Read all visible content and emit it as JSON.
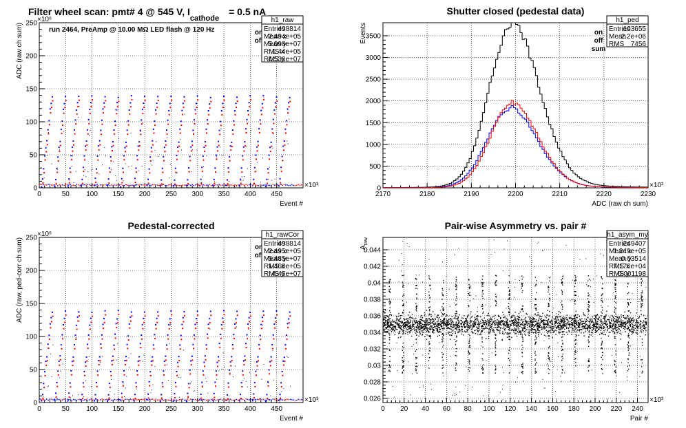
{
  "colors": {
    "on": "#0000ff",
    "off": "#ff0000",
    "sum": "#000000"
  },
  "chart_data": [
    {
      "id": "h1_raw",
      "type": "scatter",
      "title": "Filter wheel scan: pmt#   4 @   545 V, I",
      "title_sub": "cathode",
      "title_tail": "= 0.5 nA",
      "annotation": "run 2464, PreAmp @ 10.00 MΩ LED flash @  120 Hz",
      "xlabel": "Event #",
      "ylabel": "ADC (raw ch sum)",
      "x_exponent": "×10³",
      "y_exponent": "×10⁶",
      "xlim": [
        0,
        500
      ],
      "ylim": [
        0,
        250
      ],
      "xticks": [
        "0",
        "50",
        "100",
        "150",
        "200",
        "250",
        "300",
        "350",
        "400",
        "450"
      ],
      "yticks": [
        "0",
        "50",
        "100",
        "150",
        "200",
        "250"
      ],
      "legend": [
        {
          "name": "on",
          "color": "#0000ff"
        },
        {
          "name": "off",
          "color": "#ff0000"
        }
      ],
      "stats": {
        "name": "h1_raw",
        "rows": [
          {
            "label": "Entries",
            "value": "498814"
          },
          {
            "label": "Mean x",
            "value": "2.494e+05"
          },
          {
            "label": "Mean y",
            "value": "5.098e+07"
          },
          {
            "label": "RMS x",
            "value": "1.44e+05"
          },
          {
            "label": "RMS y",
            "value": "4.536e+07"
          }
        ]
      },
      "step_levels": [
        3,
        13,
        30,
        48,
        62,
        70,
        88,
        102,
        118,
        128,
        138
      ],
      "step_period": 25
    },
    {
      "id": "h1_ped",
      "type": "histogram",
      "title": "Shutter closed (pedestal data)",
      "xlabel": "ADC (raw ch sum)",
      "ylabel": "Events",
      "x_exponent": "×10³",
      "xlim": [
        2170,
        2230
      ],
      "ylim": [
        0,
        3800
      ],
      "xticks": [
        "2170",
        "2180",
        "2190",
        "2200",
        "2210",
        "2220",
        "2230"
      ],
      "yticks": [
        "0",
        "500",
        "1000",
        "1500",
        "2000",
        "2500",
        "3000",
        "3500"
      ],
      "legend": [
        {
          "name": "on",
          "color": "#0000ff"
        },
        {
          "name": "off",
          "color": "#ff0000"
        },
        {
          "name": "sum",
          "color": "#000000"
        }
      ],
      "stats": {
        "name": "h1_ped",
        "rows": [
          {
            "label": "Entries",
            "value": "103655"
          },
          {
            "label": "Mean",
            "value": "2.2e+06"
          },
          {
            "label": "RMS",
            "value": "7456"
          }
        ]
      },
      "series": [
        {
          "name": "sum",
          "peak": 3650,
          "center": 2199,
          "sigma_left": 5.0,
          "sigma_right": 6.3,
          "tail": 0.06
        },
        {
          "name": "on",
          "peak": 1780,
          "center": 2198.5,
          "sigma_left": 5.0,
          "sigma_right": 6.3,
          "tail": 0.05
        },
        {
          "name": "off",
          "peak": 1880,
          "center": 2199,
          "sigma_left": 4.8,
          "sigma_right": 6.0,
          "tail": 0.05
        }
      ]
    },
    {
      "id": "h1_rawCor",
      "type": "scatter",
      "title": "Pedestal-corrected",
      "xlabel": "Event #",
      "ylabel": "ADC (raw, ped-corr ch sum)",
      "x_exponent": "×10³",
      "y_exponent": "×10⁶",
      "xlim": [
        0,
        500
      ],
      "ylim": [
        0,
        250
      ],
      "xticks": [
        "0",
        "50",
        "100",
        "150",
        "200",
        "250",
        "300",
        "350",
        "400",
        "450"
      ],
      "yticks": [
        "0",
        "50",
        "100",
        "150",
        "200",
        "250"
      ],
      "legend": [
        {
          "name": "on",
          "color": "#0000ff"
        },
        {
          "name": "off",
          "color": "#ff0000"
        }
      ],
      "stats": {
        "name": "h1_rawCor",
        "rows": [
          {
            "label": "Entries",
            "value": "498814"
          },
          {
            "label": "Mean x",
            "value": "2.495e+05"
          },
          {
            "label": "Mean y",
            "value": "5.485e+07"
          },
          {
            "label": "RMS x",
            "value": "1.468e+05"
          },
          {
            "label": "RMS y",
            "value": "4.45e+07"
          }
        ]
      },
      "step_levels": [
        3,
        13,
        30,
        48,
        62,
        70,
        88,
        102,
        118,
        128,
        138
      ],
      "step_period": 25
    },
    {
      "id": "h1_asym_my",
      "type": "scatter",
      "title": "Pair-wise Asymmetry vs. pair #",
      "xlabel": "Pair #",
      "ylabel": "A",
      "ylabel_sub": "raw",
      "x_exponent": "×10³",
      "xlim": [
        0,
        250
      ],
      "ylim": [
        0.0255,
        0.0455
      ],
      "xticks": [
        "0",
        "20",
        "40",
        "60",
        "80",
        "100",
        "120",
        "140",
        "160",
        "180",
        "200",
        "220",
        "240"
      ],
      "yticks": [
        "0.026",
        "0.028",
        "0.03",
        "0.032",
        "0.034",
        "0.036",
        "0.038",
        "0.04",
        "0.042",
        "0.044"
      ],
      "stats": {
        "name": "h1_asym_my",
        "rows": [
          {
            "label": "Entries",
            "value": "249407"
          },
          {
            "label": "Mean x",
            "value": "1.249e+05"
          },
          {
            "label": "Mean y",
            "value": "0.03514"
          },
          {
            "label": "RMS x",
            "value": "7.176e+04"
          },
          {
            "label": "RMS y",
            "value": "0.001198"
          }
        ]
      },
      "band_center": 0.035,
      "band_rms": 0.0006,
      "spike_period": 12.5
    }
  ]
}
